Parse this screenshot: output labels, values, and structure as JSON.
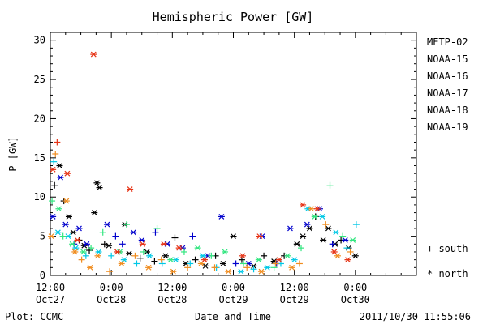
{
  "chart_data": {
    "type": "scatter",
    "title": "Hemispheric Power [GW]",
    "ylabel": "P [GW]",
    "xlabel": "Date and Time",
    "ylim": [
      0,
      31
    ],
    "xlim": [
      "2011-10-27 12:00",
      "2011-10-30 12:00"
    ],
    "yticks": [
      "0",
      "5",
      "10",
      "15",
      "20",
      "25",
      "30"
    ],
    "xticks": [
      {
        "x": "2011-10-27 12:00",
        "time": "12:00",
        "date": "Oct27"
      },
      {
        "x": "2011-10-28 00:00",
        "time": "0:00",
        "date": "Oct28"
      },
      {
        "x": "2011-10-28 12:00",
        "time": "12:00",
        "date": "Oct28"
      },
      {
        "x": "2011-10-29 00:00",
        "time": "0:00",
        "date": "Oct29"
      },
      {
        "x": "2011-10-29 12:00",
        "time": "12:00",
        "date": "Oct29"
      },
      {
        "x": "2011-10-30 00:00",
        "time": "0:00",
        "date": "Oct30"
      }
    ],
    "markers_legend": {
      "south": "+ south",
      "north": "* north"
    },
    "series": [
      {
        "name": "METP-02",
        "color": "#000000",
        "points": [
          {
            "x": "2011-10-27 12:50",
            "y": 11.5,
            "m": "+"
          },
          {
            "x": "2011-10-27 13:50",
            "y": 14.0,
            "m": "*"
          },
          {
            "x": "2011-10-27 14:40",
            "y": 9.5,
            "m": "+"
          },
          {
            "x": "2011-10-27 15:40",
            "y": 7.5,
            "m": "*"
          },
          {
            "x": "2011-10-27 16:30",
            "y": 5.5,
            "m": "*"
          },
          {
            "x": "2011-10-27 17:40",
            "y": 4.5,
            "m": "+"
          },
          {
            "x": "2011-10-27 18:40",
            "y": 3.8,
            "m": "*"
          },
          {
            "x": "2011-10-27 19:40",
            "y": 3.2,
            "m": "+"
          },
          {
            "x": "2011-10-27 20:40",
            "y": 8.0,
            "m": "*"
          },
          {
            "x": "2011-10-27 21:10",
            "y": 11.8,
            "m": "*"
          },
          {
            "x": "2011-10-27 21:40",
            "y": 11.2,
            "m": "*"
          },
          {
            "x": "2011-10-27 22:40",
            "y": 4.0,
            "m": "+"
          },
          {
            "x": "2011-10-27 23:30",
            "y": 3.8,
            "m": "*"
          },
          {
            "x": "2011-10-28 01:30",
            "y": 3.0,
            "m": "+"
          },
          {
            "x": "2011-10-28 02:40",
            "y": 6.5,
            "m": "*"
          },
          {
            "x": "2011-10-28 03:30",
            "y": 2.8,
            "m": "*"
          },
          {
            "x": "2011-10-28 05:40",
            "y": 2.2,
            "m": "+"
          },
          {
            "x": "2011-10-28 07:00",
            "y": 3.0,
            "m": "*"
          },
          {
            "x": "2011-10-28 08:30",
            "y": 1.8,
            "m": "+"
          },
          {
            "x": "2011-10-28 10:40",
            "y": 2.5,
            "m": "*"
          },
          {
            "x": "2011-10-28 12:30",
            "y": 4.8,
            "m": "+"
          },
          {
            "x": "2011-10-28 14:40",
            "y": 1.5,
            "m": "*"
          },
          {
            "x": "2011-10-28 16:30",
            "y": 2.0,
            "m": "+"
          },
          {
            "x": "2011-10-28 18:30",
            "y": 1.2,
            "m": "*"
          },
          {
            "x": "2011-10-28 20:30",
            "y": 2.5,
            "m": "+"
          },
          {
            "x": "2011-10-28 22:00",
            "y": 1.5,
            "m": "*"
          },
          {
            "x": "2011-10-29 00:00",
            "y": 5.0,
            "m": "*"
          },
          {
            "x": "2011-10-29 01:40",
            "y": 2.0,
            "m": "+"
          },
          {
            "x": "2011-10-29 04:00",
            "y": 1.2,
            "m": "*"
          },
          {
            "x": "2011-10-29 06:00",
            "y": 2.5,
            "m": "+"
          },
          {
            "x": "2011-10-29 08:00",
            "y": 1.8,
            "m": "*"
          },
          {
            "x": "2011-10-29 10:00",
            "y": 2.5,
            "m": "+"
          },
          {
            "x": "2011-10-29 12:30",
            "y": 4.0,
            "m": "*"
          },
          {
            "x": "2011-10-29 13:40",
            "y": 5.0,
            "m": "*"
          },
          {
            "x": "2011-10-29 15:00",
            "y": 6.0,
            "m": "*"
          },
          {
            "x": "2011-10-29 16:10",
            "y": 7.5,
            "m": "+"
          },
          {
            "x": "2011-10-29 17:40",
            "y": 4.5,
            "m": "*"
          },
          {
            "x": "2011-10-29 18:40",
            "y": 6.0,
            "m": "*"
          },
          {
            "x": "2011-10-29 20:00",
            "y": 4.0,
            "m": "*"
          },
          {
            "x": "2011-10-29 21:10",
            "y": 4.5,
            "m": "+"
          },
          {
            "x": "2011-10-29 22:40",
            "y": 3.5,
            "m": "*"
          },
          {
            "x": "2011-10-30 00:00",
            "y": 2.5,
            "m": "*"
          }
        ]
      },
      {
        "name": "NOAA-15",
        "color": "#0000cc",
        "points": [
          {
            "x": "2011-10-27 12:30",
            "y": 7.5,
            "m": "*"
          },
          {
            "x": "2011-10-27 14:00",
            "y": 12.5,
            "m": "*"
          },
          {
            "x": "2011-10-27 15:00",
            "y": 6.5,
            "m": "*"
          },
          {
            "x": "2011-10-27 16:40",
            "y": 4.0,
            "m": "+"
          },
          {
            "x": "2011-10-27 17:40",
            "y": 6.0,
            "m": "*"
          },
          {
            "x": "2011-10-27 19:10",
            "y": 4.0,
            "m": "*"
          },
          {
            "x": "2011-10-27 23:10",
            "y": 6.5,
            "m": "*"
          },
          {
            "x": "2011-10-28 00:50",
            "y": 5.0,
            "m": "+"
          },
          {
            "x": "2011-10-28 02:10",
            "y": 4.0,
            "m": "+"
          },
          {
            "x": "2011-10-28 04:20",
            "y": 5.5,
            "m": "*"
          },
          {
            "x": "2011-10-28 06:00",
            "y": 4.5,
            "m": "*"
          },
          {
            "x": "2011-10-28 08:40",
            "y": 5.5,
            "m": "+"
          },
          {
            "x": "2011-10-28 11:00",
            "y": 4.0,
            "m": "*"
          },
          {
            "x": "2011-10-28 14:00",
            "y": 3.5,
            "m": "*"
          },
          {
            "x": "2011-10-28 16:00",
            "y": 5.0,
            "m": "+"
          },
          {
            "x": "2011-10-28 19:00",
            "y": 2.5,
            "m": "*"
          },
          {
            "x": "2011-10-28 21:40",
            "y": 7.5,
            "m": "*"
          },
          {
            "x": "2011-10-29 00:30",
            "y": 1.5,
            "m": "+"
          },
          {
            "x": "2011-10-29 03:00",
            "y": 1.5,
            "m": "*"
          },
          {
            "x": "2011-10-29 05:40",
            "y": 5.0,
            "m": "*"
          },
          {
            "x": "2011-10-29 08:30",
            "y": 1.5,
            "m": "+"
          },
          {
            "x": "2011-10-29 11:10",
            "y": 6.0,
            "m": "*"
          },
          {
            "x": "2011-10-29 14:30",
            "y": 6.5,
            "m": "*"
          },
          {
            "x": "2011-10-29 17:00",
            "y": 8.5,
            "m": "*"
          },
          {
            "x": "2011-10-29 19:30",
            "y": 4.0,
            "m": "+"
          },
          {
            "x": "2011-10-29 22:00",
            "y": 4.5,
            "m": "*"
          }
        ]
      },
      {
        "name": "NOAA-16",
        "color": "#00c8e6",
        "points": [
          {
            "x": "2011-10-27 12:40",
            "y": 14.5,
            "m": "+"
          },
          {
            "x": "2011-10-27 13:30",
            "y": 5.5,
            "m": "*"
          },
          {
            "x": "2011-10-27 15:30",
            "y": 5.0,
            "m": "*"
          },
          {
            "x": "2011-10-27 17:00",
            "y": 3.5,
            "m": "*"
          },
          {
            "x": "2011-10-27 19:00",
            "y": 2.5,
            "m": "+"
          },
          {
            "x": "2011-10-27 21:30",
            "y": 3.0,
            "m": "*"
          },
          {
            "x": "2011-10-28 00:00",
            "y": 2.5,
            "m": "+"
          },
          {
            "x": "2011-10-28 02:30",
            "y": 2.0,
            "m": "*"
          },
          {
            "x": "2011-10-28 05:00",
            "y": 1.5,
            "m": "+"
          },
          {
            "x": "2011-10-28 07:30",
            "y": 2.5,
            "m": "*"
          },
          {
            "x": "2011-10-28 10:00",
            "y": 1.5,
            "m": "+"
          },
          {
            "x": "2011-10-28 12:40",
            "y": 2.0,
            "m": "*"
          },
          {
            "x": "2011-10-28 15:30",
            "y": 1.5,
            "m": "+"
          },
          {
            "x": "2011-10-28 18:00",
            "y": 2.5,
            "m": "*"
          },
          {
            "x": "2011-10-28 20:40",
            "y": 1.0,
            "m": "+"
          },
          {
            "x": "2011-10-29 01:30",
            "y": 0.5,
            "m": "*"
          },
          {
            "x": "2011-10-29 04:00",
            "y": 0.8,
            "m": "+"
          },
          {
            "x": "2011-10-29 06:40",
            "y": 1.0,
            "m": "*"
          },
          {
            "x": "2011-10-29 09:20",
            "y": 1.5,
            "m": "+"
          },
          {
            "x": "2011-10-29 12:00",
            "y": 2.0,
            "m": "*"
          },
          {
            "x": "2011-10-29 14:40",
            "y": 8.5,
            "m": "*"
          },
          {
            "x": "2011-10-29 17:30",
            "y": 7.5,
            "m": "*"
          },
          {
            "x": "2011-10-29 20:10",
            "y": 5.5,
            "m": "*"
          },
          {
            "x": "2011-10-29 22:20",
            "y": 3.5,
            "m": "+"
          },
          {
            "x": "2011-10-30 00:10",
            "y": 6.5,
            "m": "+"
          }
        ]
      },
      {
        "name": "NOAA-17",
        "color": "#33e680",
        "points": [
          {
            "x": "2011-10-27 12:20",
            "y": 9.5,
            "m": "+"
          },
          {
            "x": "2011-10-27 13:40",
            "y": 8.5,
            "m": "*"
          },
          {
            "x": "2011-10-27 14:30",
            "y": 5.0,
            "m": "+"
          },
          {
            "x": "2011-10-27 16:20",
            "y": 4.0,
            "m": "*"
          },
          {
            "x": "2011-10-27 18:30",
            "y": 3.0,
            "m": "*"
          },
          {
            "x": "2011-10-27 20:00",
            "y": 3.5,
            "m": "+"
          },
          {
            "x": "2011-10-27 22:20",
            "y": 5.5,
            "m": "+"
          },
          {
            "x": "2011-10-28 01:40",
            "y": 3.0,
            "m": "*"
          },
          {
            "x": "2011-10-28 03:00",
            "y": 6.5,
            "m": "+"
          },
          {
            "x": "2011-10-28 06:20",
            "y": 3.0,
            "m": "+"
          },
          {
            "x": "2011-10-28 09:00",
            "y": 6.0,
            "m": "+"
          },
          {
            "x": "2011-10-28 11:40",
            "y": 2.0,
            "m": "*"
          },
          {
            "x": "2011-10-28 14:20",
            "y": 3.0,
            "m": "+"
          },
          {
            "x": "2011-10-28 17:00",
            "y": 3.5,
            "m": "*"
          },
          {
            "x": "2011-10-28 19:40",
            "y": 2.5,
            "m": "+"
          },
          {
            "x": "2011-10-28 22:20",
            "y": 3.0,
            "m": "*"
          },
          {
            "x": "2011-10-29 02:00",
            "y": 1.5,
            "m": "+"
          },
          {
            "x": "2011-10-29 05:00",
            "y": 2.0,
            "m": "*"
          },
          {
            "x": "2011-10-29 08:00",
            "y": 1.0,
            "m": "+"
          },
          {
            "x": "2011-10-29 10:40",
            "y": 2.5,
            "m": "*"
          },
          {
            "x": "2011-10-29 13:20",
            "y": 3.5,
            "m": "+"
          },
          {
            "x": "2011-10-29 16:00",
            "y": 7.5,
            "m": "*"
          },
          {
            "x": "2011-10-29 19:00",
            "y": 11.5,
            "m": "+"
          },
          {
            "x": "2011-10-29 21:30",
            "y": 5.0,
            "m": "+"
          },
          {
            "x": "2011-10-29 23:30",
            "y": 4.5,
            "m": "*"
          }
        ]
      },
      {
        "name": "NOAA-18",
        "color": "#f08c1e",
        "points": [
          {
            "x": "2011-10-27 12:10",
            "y": 5.0,
            "m": "*"
          },
          {
            "x": "2011-10-27 13:00",
            "y": 15.5,
            "m": "+"
          },
          {
            "x": "2011-10-27 15:10",
            "y": 9.5,
            "m": "*"
          },
          {
            "x": "2011-10-27 16:50",
            "y": 3.0,
            "m": "*"
          },
          {
            "x": "2011-10-27 18:10",
            "y": 2.0,
            "m": "+"
          },
          {
            "x": "2011-10-27 19:50",
            "y": 1.0,
            "m": "*"
          },
          {
            "x": "2011-10-27 21:20",
            "y": 2.5,
            "m": "*"
          },
          {
            "x": "2011-10-27 23:40",
            "y": 0.5,
            "m": "+"
          },
          {
            "x": "2011-10-28 02:00",
            "y": 1.5,
            "m": "*"
          },
          {
            "x": "2011-10-28 04:40",
            "y": 2.5,
            "m": "+"
          },
          {
            "x": "2011-10-28 07:20",
            "y": 1.0,
            "m": "*"
          },
          {
            "x": "2011-10-28 09:50",
            "y": 2.0,
            "m": "+"
          },
          {
            "x": "2011-10-28 12:10",
            "y": 0.5,
            "m": "*"
          },
          {
            "x": "2011-10-28 15:00",
            "y": 1.0,
            "m": "+"
          },
          {
            "x": "2011-10-28 17:40",
            "y": 1.5,
            "m": "*"
          },
          {
            "x": "2011-10-28 20:20",
            "y": 1.0,
            "m": "+"
          },
          {
            "x": "2011-10-28 23:00",
            "y": 0.5,
            "m": "*"
          },
          {
            "x": "2011-10-29 02:40",
            "y": 1.0,
            "m": "+"
          },
          {
            "x": "2011-10-29 05:30",
            "y": 0.5,
            "m": "*"
          },
          {
            "x": "2011-10-29 08:20",
            "y": 1.5,
            "m": "+"
          },
          {
            "x": "2011-10-29 11:30",
            "y": 1.0,
            "m": "*"
          },
          {
            "x": "2011-10-29 13:00",
            "y": 1.5,
            "m": "+"
          },
          {
            "x": "2011-10-29 15:20",
            "y": 8.5,
            "m": "*"
          },
          {
            "x": "2011-10-29 18:10",
            "y": 6.5,
            "m": "+"
          },
          {
            "x": "2011-10-29 20:30",
            "y": 2.5,
            "m": "*"
          },
          {
            "x": "2011-10-29 23:00",
            "y": 3.0,
            "m": "+"
          }
        ]
      },
      {
        "name": "NOAA-19",
        "color": "#e63214",
        "points": [
          {
            "x": "2011-10-27 12:30",
            "y": 13.5,
            "m": "*"
          },
          {
            "x": "2011-10-27 13:20",
            "y": 17.0,
            "m": "+"
          },
          {
            "x": "2011-10-27 15:20",
            "y": 13.0,
            "m": "*"
          },
          {
            "x": "2011-10-27 17:20",
            "y": 4.5,
            "m": "*"
          },
          {
            "x": "2011-10-27 20:30",
            "y": 28.2,
            "m": "*"
          },
          {
            "x": "2011-10-28 01:10",
            "y": 3.0,
            "m": "*"
          },
          {
            "x": "2011-10-28 03:40",
            "y": 11.0,
            "m": "*"
          },
          {
            "x": "2011-10-28 06:10",
            "y": 4.0,
            "m": "*"
          },
          {
            "x": "2011-10-28 10:20",
            "y": 4.0,
            "m": "*"
          },
          {
            "x": "2011-10-28 13:20",
            "y": 3.5,
            "m": "*"
          },
          {
            "x": "2011-10-28 18:20",
            "y": 2.0,
            "m": "*"
          },
          {
            "x": "2011-10-29 01:50",
            "y": 2.5,
            "m": "*"
          },
          {
            "x": "2011-10-29 05:10",
            "y": 5.0,
            "m": "*"
          },
          {
            "x": "2011-10-29 09:00",
            "y": 2.0,
            "m": "*"
          },
          {
            "x": "2011-10-29 13:40",
            "y": 9.0,
            "m": "*"
          },
          {
            "x": "2011-10-29 16:30",
            "y": 8.5,
            "m": "*"
          },
          {
            "x": "2011-10-29 19:50",
            "y": 3.0,
            "m": "*"
          },
          {
            "x": "2011-10-29 22:30",
            "y": 2.0,
            "m": "*"
          }
        ]
      }
    ]
  },
  "footer": {
    "plot_credit": "Plot: CCMC",
    "timestamp": "2011/10/30 11:55:06"
  }
}
